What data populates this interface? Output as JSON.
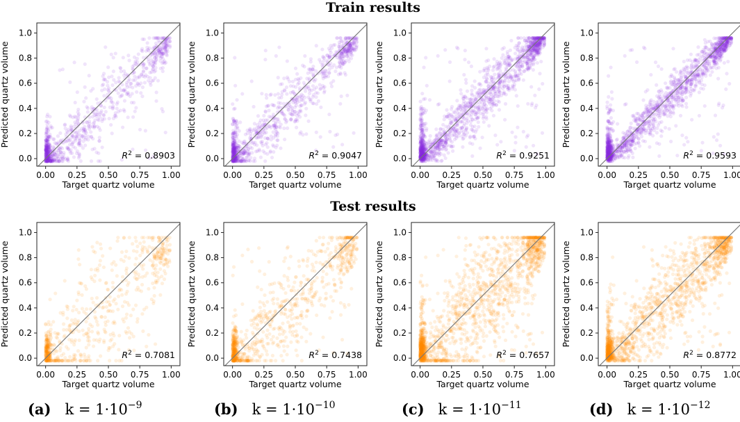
{
  "figure": {
    "row_titles": [
      "Train results",
      "Test results"
    ],
    "captions": [
      {
        "letter": "(a)",
        "base": "k = 1·10",
        "exp": "−9"
      },
      {
        "letter": "(b)",
        "base": "k = 1·10",
        "exp": "−10"
      },
      {
        "letter": "(c)",
        "base": "k = 1·10",
        "exp": "−11"
      },
      {
        "letter": "(d)",
        "base": "k = 1·10",
        "exp": "−12"
      }
    ]
  },
  "chart_data": [
    {
      "type": "scatter",
      "row": "Train results",
      "panel": "(a)",
      "xlabel": "Target quartz volume",
      "ylabel": "Predicted quartz volume",
      "xlim": [
        -0.07,
        1.07
      ],
      "ylim": [
        -0.06,
        1.08
      ],
      "xticks": [
        "0.00",
        "0.25",
        "0.50",
        "0.75",
        "1.00"
      ],
      "yticks": [
        "0.0",
        "0.2",
        "0.4",
        "0.6",
        "0.8",
        "1.0"
      ],
      "r2": "0.8903",
      "color": "#8a2be2",
      "density": 0.55,
      "spread": 0.12,
      "bias": -0.06,
      "n": 900
    },
    {
      "type": "scatter",
      "row": "Train results",
      "panel": "(b)",
      "xlabel": "Target quartz volume",
      "ylabel": "Predicted quartz volume",
      "xlim": [
        -0.07,
        1.07
      ],
      "ylim": [
        -0.06,
        1.08
      ],
      "xticks": [
        "0.00",
        "0.25",
        "0.50",
        "0.75",
        "1.00"
      ],
      "yticks": [
        "0.0",
        "0.2",
        "0.4",
        "0.6",
        "0.8",
        "1.0"
      ],
      "r2": "0.9047",
      "color": "#8a2be2",
      "density": 0.75,
      "spread": 0.1,
      "bias": -0.04,
      "n": 1000
    },
    {
      "type": "scatter",
      "row": "Train results",
      "panel": "(c)",
      "xlabel": "Target quartz volume",
      "ylabel": "Predicted quartz volume",
      "xlim": [
        -0.07,
        1.07
      ],
      "ylim": [
        -0.06,
        1.08
      ],
      "xticks": [
        "0.00",
        "0.25",
        "0.50",
        "0.75",
        "1.00"
      ],
      "yticks": [
        "0.0",
        "0.2",
        "0.4",
        "0.6",
        "0.8",
        "1.0"
      ],
      "r2": "0.9251",
      "color": "#8a2be2",
      "density": 1.0,
      "spread": 0.09,
      "bias": -0.02,
      "n": 1600
    },
    {
      "type": "scatter",
      "row": "Train results",
      "panel": "(d)",
      "xlabel": "Target quartz volume",
      "ylabel": "Predicted quartz volume",
      "xlim": [
        -0.07,
        1.07
      ],
      "ylim": [
        -0.06,
        1.08
      ],
      "xticks": [
        "0.00",
        "0.25",
        "0.50",
        "0.75",
        "1.00"
      ],
      "yticks": [
        "0.0",
        "0.2",
        "0.4",
        "0.6",
        "0.8",
        "1.0"
      ],
      "r2": "0.9593",
      "color": "#8a2be2",
      "density": 1.0,
      "spread": 0.07,
      "bias": -0.02,
      "n": 1600
    },
    {
      "type": "scatter",
      "row": "Test results",
      "panel": "(a)",
      "xlabel": "Target quartz volume",
      "ylabel": "Predicted quartz volume",
      "xlim": [
        -0.07,
        1.07
      ],
      "ylim": [
        -0.06,
        1.08
      ],
      "xticks": [
        "0.00",
        "0.25",
        "0.50",
        "0.75",
        "1.00"
      ],
      "yticks": [
        "0.0",
        "0.2",
        "0.4",
        "0.6",
        "0.8",
        "1.0"
      ],
      "r2": "0.7081",
      "color": "#ff8c00",
      "density": 0.35,
      "spread": 0.22,
      "bias": -0.08,
      "n": 700
    },
    {
      "type": "scatter",
      "row": "Test results",
      "panel": "(b)",
      "xlabel": "Target quartz volume",
      "ylabel": "Predicted quartz volume",
      "xlim": [
        -0.07,
        1.07
      ],
      "ylim": [
        -0.06,
        1.08
      ],
      "xticks": [
        "0.00",
        "0.25",
        "0.50",
        "0.75",
        "1.00"
      ],
      "yticks": [
        "0.0",
        "0.2",
        "0.4",
        "0.6",
        "0.8",
        "1.0"
      ],
      "r2": "0.7438",
      "color": "#ff8c00",
      "density": 0.5,
      "spread": 0.18,
      "bias": -0.06,
      "n": 900
    },
    {
      "type": "scatter",
      "row": "Test results",
      "panel": "(c)",
      "xlabel": "Target quartz volume",
      "ylabel": "Predicted quartz volume",
      "xlim": [
        -0.07,
        1.07
      ],
      "ylim": [
        -0.06,
        1.08
      ],
      "xticks": [
        "0.00",
        "0.25",
        "0.50",
        "0.75",
        "1.00"
      ],
      "yticks": [
        "0.0",
        "0.2",
        "0.4",
        "0.6",
        "0.8",
        "1.0"
      ],
      "r2": "0.7657",
      "color": "#ff8c00",
      "density": 1.0,
      "spread": 0.2,
      "bias": -0.04,
      "n": 1700
    },
    {
      "type": "scatter",
      "row": "Test results",
      "panel": "(d)",
      "xlabel": "Target quartz volume",
      "ylabel": "Predicted quartz volume",
      "xlim": [
        -0.07,
        1.07
      ],
      "ylim": [
        -0.06,
        1.08
      ],
      "xticks": [
        "0.00",
        "0.25",
        "0.50",
        "0.75",
        "1.00"
      ],
      "yticks": [
        "0.0",
        "0.2",
        "0.4",
        "0.6",
        "0.8",
        "1.0"
      ],
      "r2": "0.8772",
      "color": "#ff8c00",
      "density": 1.0,
      "spread": 0.14,
      "bias": -0.03,
      "n": 1600
    }
  ]
}
